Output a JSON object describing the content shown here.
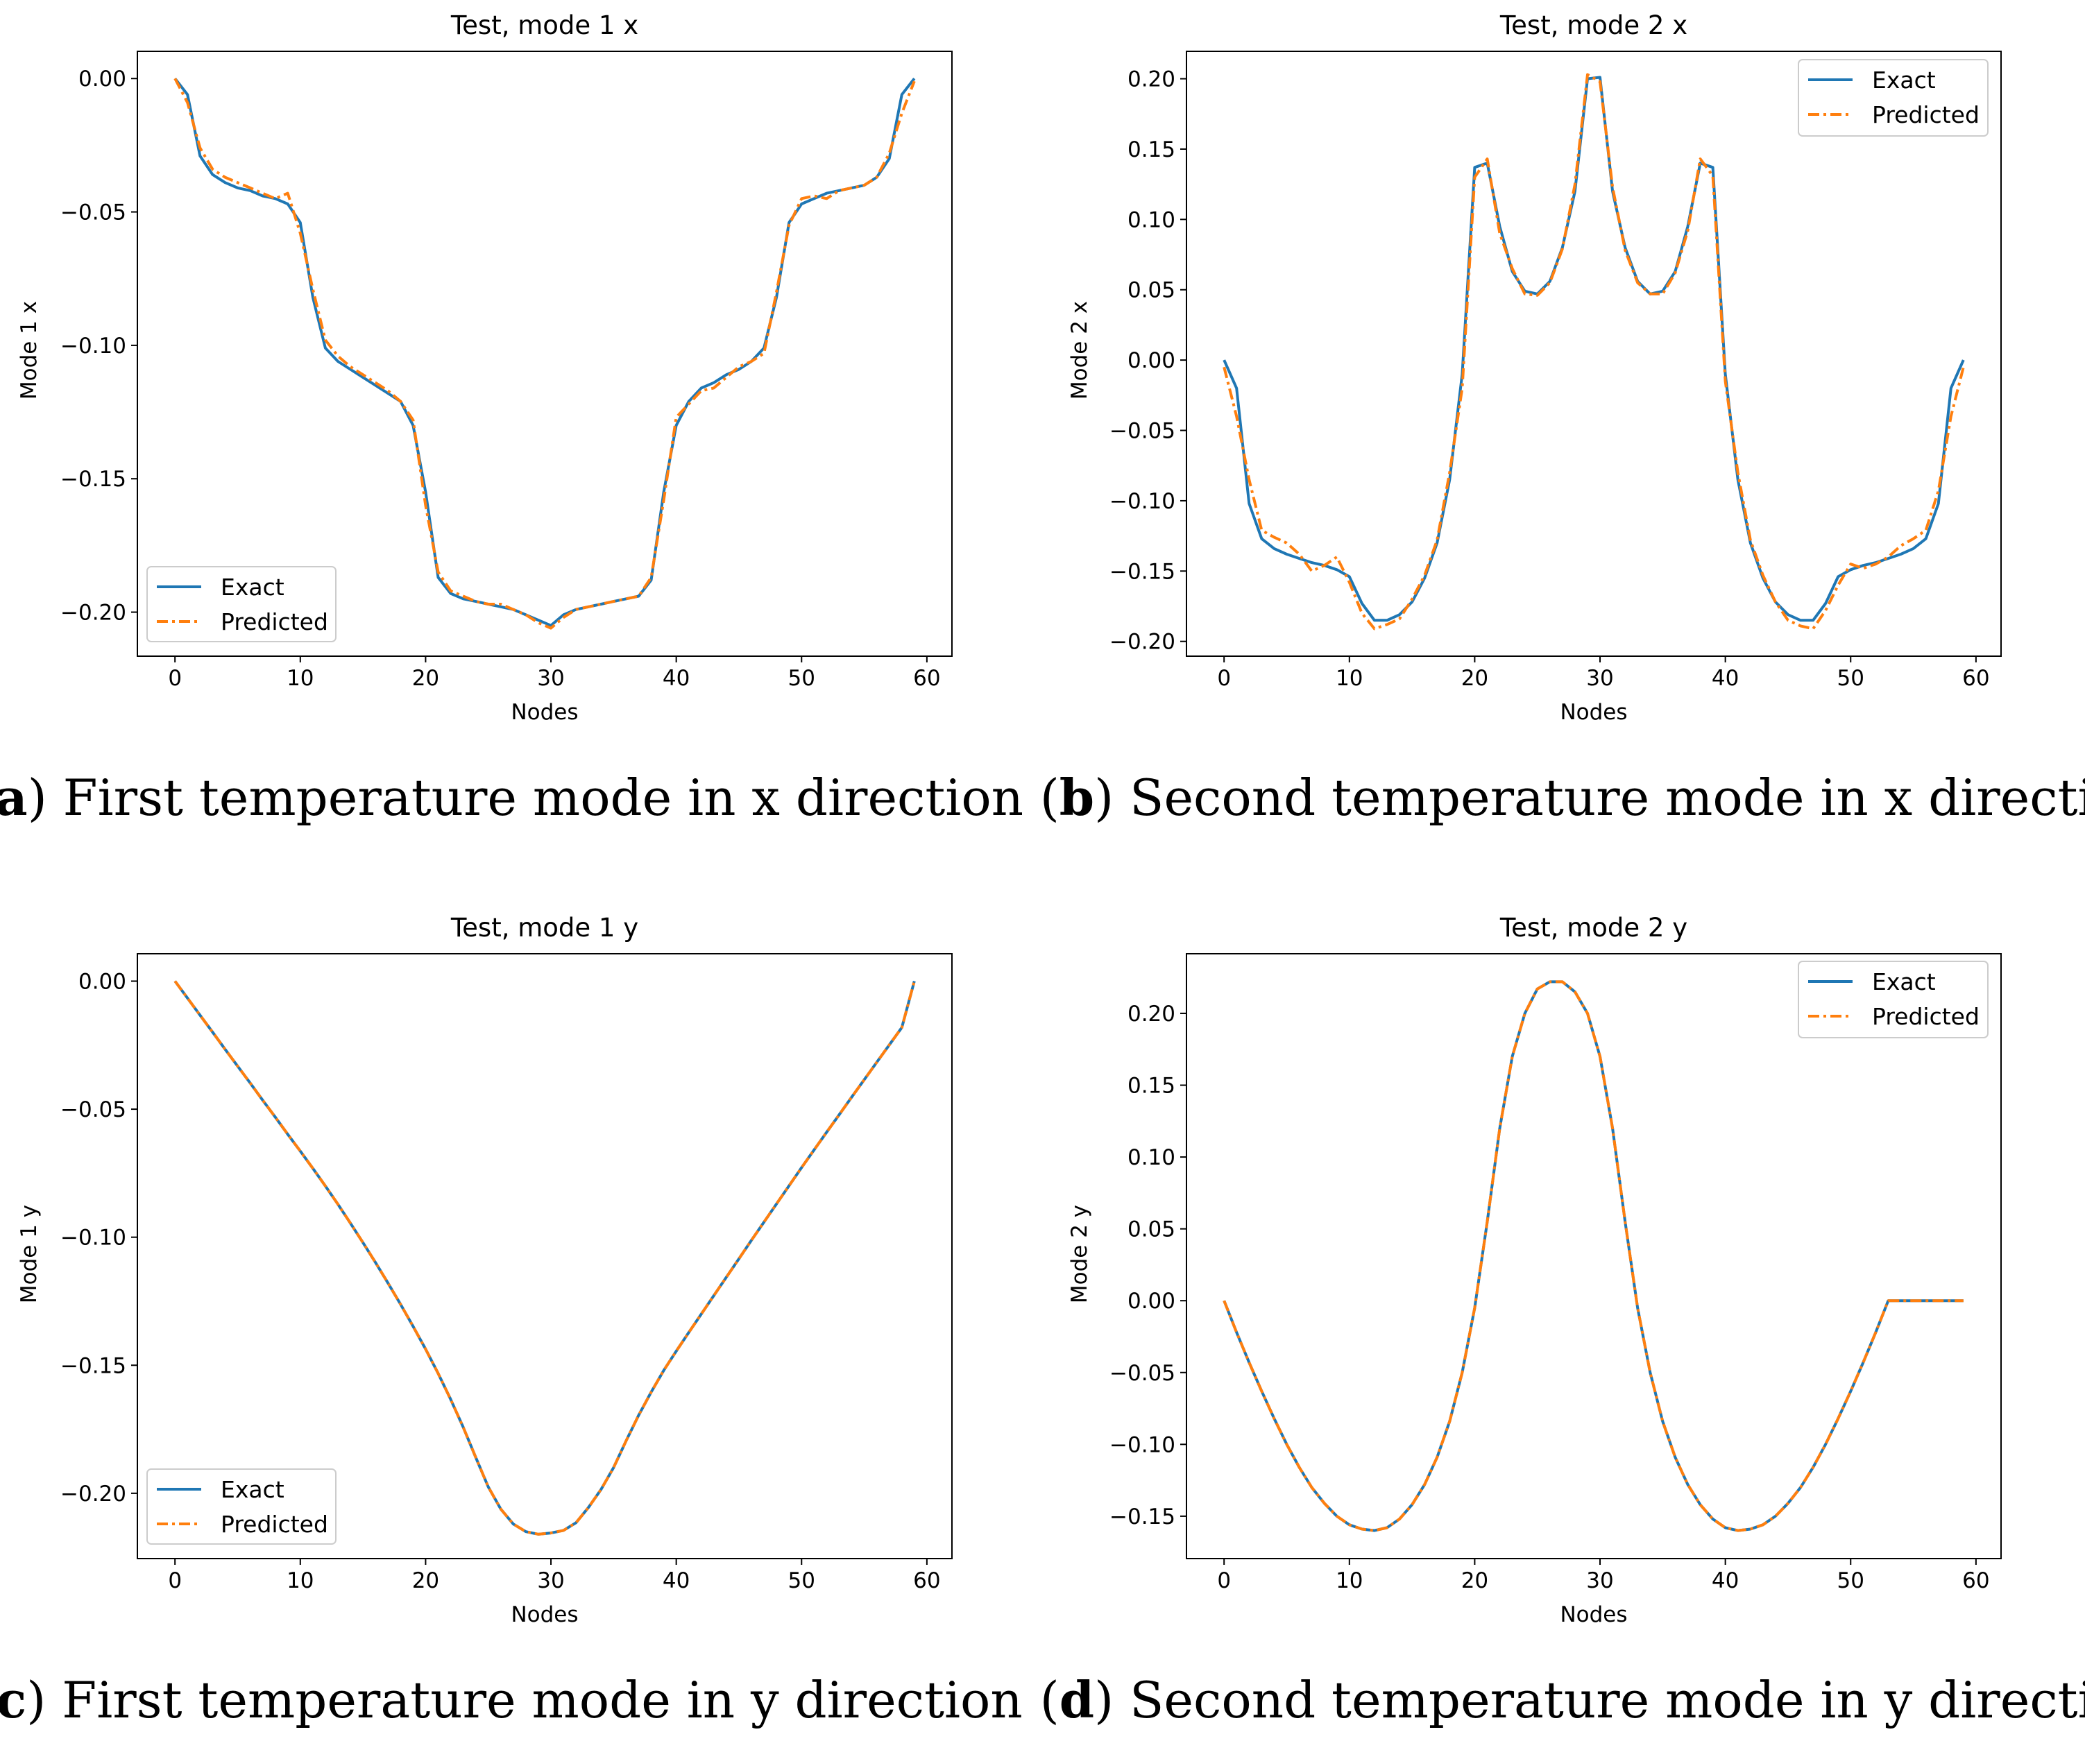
{
  "colors": {
    "exact": "#1f77b4",
    "predicted": "#ff7f0e",
    "axis": "#000000",
    "background": "#ffffff"
  },
  "chart_data": [
    {
      "type": "line",
      "title": "Test, mode 1 x",
      "xlabel": "Nodes",
      "ylabel": "Mode 1 x",
      "caption_letter": "a",
      "caption_text": "First temperature mode in x direction",
      "xlim": [
        -3,
        62
      ],
      "ylim": [
        -0.2165,
        0.0102
      ],
      "xticks": [
        0,
        10,
        20,
        30,
        40,
        50,
        60
      ],
      "xtick_labels": [
        "0",
        "10",
        "20",
        "30",
        "40",
        "50",
        "60"
      ],
      "yticks": [
        0.0,
        -0.05,
        -0.1,
        -0.15,
        -0.2
      ],
      "ytick_labels": [
        "0.00",
        "−0.05",
        "−0.10",
        "−0.15",
        "−0.20"
      ],
      "legend_position": "lower-left",
      "x": [
        0,
        1,
        2,
        3,
        4,
        5,
        6,
        7,
        8,
        9,
        10,
        11,
        12,
        13,
        14,
        15,
        16,
        17,
        18,
        19,
        20,
        21,
        22,
        23,
        24,
        25,
        26,
        27,
        28,
        29,
        30,
        31,
        32,
        33,
        34,
        35,
        36,
        37,
        38,
        39,
        40,
        41,
        42,
        43,
        44,
        45,
        46,
        47,
        48,
        49,
        50,
        51,
        52,
        53,
        54,
        55,
        56,
        57,
        58,
        59
      ],
      "series": [
        {
          "name": "Exact",
          "style": "solid",
          "values": [
            0.0,
            -0.006,
            -0.029,
            -0.036,
            -0.039,
            -0.041,
            -0.042,
            -0.044,
            -0.045,
            -0.047,
            -0.054,
            -0.082,
            -0.101,
            -0.106,
            -0.109,
            -0.112,
            -0.115,
            -0.118,
            -0.121,
            -0.13,
            -0.155,
            -0.187,
            -0.193,
            -0.195,
            -0.196,
            -0.197,
            -0.198,
            -0.199,
            -0.201,
            -0.203,
            -0.205,
            -0.201,
            -0.199,
            -0.198,
            -0.197,
            -0.196,
            -0.195,
            -0.194,
            -0.188,
            -0.155,
            -0.13,
            -0.121,
            -0.116,
            -0.114,
            -0.111,
            -0.109,
            -0.106,
            -0.101,
            -0.082,
            -0.054,
            -0.047,
            -0.045,
            -0.043,
            -0.042,
            -0.041,
            -0.04,
            -0.037,
            -0.03,
            -0.006,
            0.0
          ]
        },
        {
          "name": "Predicted",
          "style": "dashdot",
          "values": [
            0.0,
            -0.009,
            -0.026,
            -0.034,
            -0.037,
            -0.039,
            -0.041,
            -0.043,
            -0.045,
            -0.043,
            -0.058,
            -0.079,
            -0.098,
            -0.104,
            -0.108,
            -0.111,
            -0.114,
            -0.117,
            -0.121,
            -0.128,
            -0.16,
            -0.185,
            -0.192,
            -0.194,
            -0.196,
            -0.197,
            -0.197,
            -0.199,
            -0.201,
            -0.204,
            -0.206,
            -0.202,
            -0.199,
            -0.198,
            -0.197,
            -0.196,
            -0.195,
            -0.194,
            -0.187,
            -0.158,
            -0.127,
            -0.122,
            -0.117,
            -0.116,
            -0.112,
            -0.108,
            -0.106,
            -0.103,
            -0.08,
            -0.055,
            -0.045,
            -0.044,
            -0.045,
            -0.042,
            -0.041,
            -0.04,
            -0.037,
            -0.028,
            -0.013,
            -0.001
          ]
        }
      ]
    },
    {
      "type": "line",
      "title": "Test, mode 2 x",
      "xlabel": "Nodes",
      "ylabel": "Mode 2 x",
      "caption_letter": "b",
      "caption_text": "Second temperature mode in x direction",
      "xlim": [
        -3,
        62
      ],
      "ylim": [
        -0.2105,
        0.2195
      ],
      "xticks": [
        0,
        10,
        20,
        30,
        40,
        50,
        60
      ],
      "xtick_labels": [
        "0",
        "10",
        "20",
        "30",
        "40",
        "50",
        "60"
      ],
      "yticks": [
        0.2,
        0.15,
        0.1,
        0.05,
        0.0,
        -0.05,
        -0.1,
        -0.15,
        -0.2
      ],
      "ytick_labels": [
        "0.20",
        "0.15",
        "0.10",
        "0.05",
        "0.00",
        "−0.05",
        "−0.10",
        "−0.15",
        "−0.20"
      ],
      "legend_position": "upper-right",
      "x": [
        0,
        1,
        2,
        3,
        4,
        5,
        6,
        7,
        8,
        9,
        10,
        11,
        12,
        13,
        14,
        15,
        16,
        17,
        18,
        19,
        20,
        21,
        22,
        23,
        24,
        25,
        26,
        27,
        28,
        29,
        30,
        31,
        32,
        33,
        34,
        35,
        36,
        37,
        38,
        39,
        40,
        41,
        42,
        43,
        44,
        45,
        46,
        47,
        48,
        49,
        50,
        51,
        52,
        53,
        54,
        55,
        56,
        57,
        58,
        59
      ],
      "series": [
        {
          "name": "Exact",
          "style": "solid",
          "values": [
            0.0,
            -0.02,
            -0.102,
            -0.127,
            -0.134,
            -0.138,
            -0.141,
            -0.144,
            -0.146,
            -0.149,
            -0.154,
            -0.173,
            -0.185,
            -0.185,
            -0.181,
            -0.172,
            -0.155,
            -0.13,
            -0.085,
            -0.01,
            0.137,
            0.14,
            0.095,
            0.063,
            0.049,
            0.047,
            0.056,
            0.08,
            0.12,
            0.2,
            0.201,
            0.12,
            0.08,
            0.056,
            0.047,
            0.049,
            0.063,
            0.095,
            0.14,
            0.137,
            -0.01,
            -0.085,
            -0.13,
            -0.155,
            -0.172,
            -0.181,
            -0.185,
            -0.185,
            -0.173,
            -0.154,
            -0.149,
            -0.146,
            -0.144,
            -0.141,
            -0.138,
            -0.134,
            -0.127,
            -0.102,
            -0.02,
            0.0
          ]
        },
        {
          "name": "Predicted",
          "style": "dashdot",
          "values": [
            -0.005,
            -0.04,
            -0.085,
            -0.121,
            -0.126,
            -0.13,
            -0.138,
            -0.15,
            -0.146,
            -0.14,
            -0.158,
            -0.18,
            -0.191,
            -0.188,
            -0.184,
            -0.17,
            -0.153,
            -0.128,
            -0.08,
            -0.02,
            0.13,
            0.143,
            0.09,
            0.065,
            0.047,
            0.046,
            0.055,
            0.079,
            0.125,
            0.203,
            0.198,
            0.123,
            0.078,
            0.055,
            0.047,
            0.047,
            0.062,
            0.092,
            0.143,
            0.131,
            -0.015,
            -0.08,
            -0.128,
            -0.153,
            -0.172,
            -0.185,
            -0.189,
            -0.191,
            -0.178,
            -0.16,
            -0.145,
            -0.148,
            -0.145,
            -0.14,
            -0.132,
            -0.127,
            -0.121,
            -0.093,
            -0.04,
            -0.005
          ]
        }
      ]
    },
    {
      "type": "line",
      "title": "Test, mode 1 y",
      "xlabel": "Nodes",
      "ylabel": "Mode 1 y",
      "caption_letter": "c",
      "caption_text": "First temperature mode in y direction",
      "xlim": [
        -3,
        62
      ],
      "ylim": [
        -0.2255,
        0.0107
      ],
      "xticks": [
        0,
        10,
        20,
        30,
        40,
        50,
        60
      ],
      "xtick_labels": [
        "0",
        "10",
        "20",
        "30",
        "40",
        "50",
        "60"
      ],
      "yticks": [
        0.0,
        -0.05,
        -0.1,
        -0.15,
        -0.2
      ],
      "ytick_labels": [
        "0.00",
        "−0.05",
        "−0.10",
        "−0.15",
        "−0.20"
      ],
      "legend_position": "lower-left",
      "x": [
        0,
        1,
        2,
        3,
        4,
        5,
        6,
        7,
        8,
        9,
        10,
        11,
        12,
        13,
        14,
        15,
        16,
        17,
        18,
        19,
        20,
        21,
        22,
        23,
        24,
        25,
        26,
        27,
        28,
        29,
        30,
        31,
        32,
        33,
        34,
        35,
        36,
        37,
        38,
        39,
        40,
        41,
        42,
        43,
        44,
        45,
        46,
        47,
        48,
        49,
        50,
        51,
        52,
        53,
        54,
        55,
        56,
        57,
        58,
        59
      ],
      "series": [
        {
          "name": "Exact",
          "style": "solid",
          "values": [
            0.0,
            -0.0066,
            -0.0133,
            -0.0199,
            -0.0266,
            -0.0332,
            -0.0398,
            -0.0465,
            -0.0531,
            -0.0598,
            -0.0664,
            -0.0731,
            -0.08,
            -0.0871,
            -0.0945,
            -0.1021,
            -0.1099,
            -0.1179,
            -0.1262,
            -0.1348,
            -0.1437,
            -0.1532,
            -0.1633,
            -0.1742,
            -0.186,
            -0.1975,
            -0.2062,
            -0.212,
            -0.215,
            -0.216,
            -0.2155,
            -0.2145,
            -0.2115,
            -0.2055,
            -0.1985,
            -0.19,
            -0.1795,
            -0.1695,
            -0.1605,
            -0.152,
            -0.1445,
            -0.1372,
            -0.13,
            -0.1228,
            -0.1156,
            -0.1084,
            -0.1012,
            -0.0941,
            -0.087,
            -0.0799,
            -0.0728,
            -0.0659,
            -0.059,
            -0.0522,
            -0.0453,
            -0.0385,
            -0.0317,
            -0.0249,
            -0.0181,
            0.0
          ]
        },
        {
          "name": "Predicted",
          "style": "dashdot",
          "values": [
            0.0,
            -0.0066,
            -0.0133,
            -0.0199,
            -0.0266,
            -0.0332,
            -0.0398,
            -0.0465,
            -0.0531,
            -0.0598,
            -0.0664,
            -0.0731,
            -0.08,
            -0.0871,
            -0.0945,
            -0.1021,
            -0.1099,
            -0.1179,
            -0.1262,
            -0.1348,
            -0.1437,
            -0.1532,
            -0.1633,
            -0.1742,
            -0.186,
            -0.1975,
            -0.2062,
            -0.212,
            -0.215,
            -0.216,
            -0.2155,
            -0.2145,
            -0.2115,
            -0.2055,
            -0.1985,
            -0.19,
            -0.1795,
            -0.1695,
            -0.1605,
            -0.152,
            -0.1445,
            -0.1372,
            -0.13,
            -0.1228,
            -0.1156,
            -0.1084,
            -0.1012,
            -0.0941,
            -0.087,
            -0.0799,
            -0.0728,
            -0.0659,
            -0.059,
            -0.0522,
            -0.0453,
            -0.0385,
            -0.0317,
            -0.0249,
            -0.0181,
            0.0
          ]
        }
      ]
    },
    {
      "type": "line",
      "title": "Test, mode 2 y",
      "xlabel": "Nodes",
      "ylabel": "Mode 2 y",
      "caption_letter": "d",
      "caption_text": "Second temperature mode in y direction",
      "xlim": [
        -3,
        62
      ],
      "ylim": [
        -0.1795,
        0.2415
      ],
      "xticks": [
        0,
        10,
        20,
        30,
        40,
        50,
        60
      ],
      "xtick_labels": [
        "0",
        "10",
        "20",
        "30",
        "40",
        "50",
        "60"
      ],
      "yticks": [
        0.2,
        0.15,
        0.1,
        0.05,
        0.0,
        -0.05,
        -0.1,
        -0.15
      ],
      "ytick_labels": [
        "0.20",
        "0.15",
        "0.10",
        "0.05",
        "0.00",
        "−0.05",
        "−0.10",
        "−0.15"
      ],
      "legend_position": "upper-right",
      "x": [
        0,
        1,
        2,
        3,
        4,
        5,
        6,
        7,
        8,
        9,
        10,
        11,
        12,
        13,
        14,
        15,
        16,
        17,
        18,
        19,
        20,
        21,
        22,
        23,
        24,
        25,
        26,
        27,
        28,
        29,
        30,
        31,
        32,
        33,
        34,
        35,
        36,
        37,
        38,
        39,
        40,
        41,
        42,
        43,
        44,
        45,
        46,
        47,
        48,
        49,
        50,
        51,
        52,
        53,
        54,
        55,
        56,
        57,
        58,
        59
      ],
      "series": [
        {
          "name": "Exact",
          "style": "solid",
          "values": [
            0.0,
            -0.022,
            -0.043,
            -0.063,
            -0.082,
            -0.1,
            -0.116,
            -0.13,
            -0.141,
            -0.15,
            -0.156,
            -0.159,
            -0.16,
            -0.158,
            -0.152,
            -0.142,
            -0.128,
            -0.109,
            -0.084,
            -0.05,
            -0.005,
            0.055,
            0.12,
            0.17,
            0.2,
            0.217,
            0.222,
            0.222,
            0.215,
            0.2,
            0.17,
            0.12,
            0.055,
            -0.005,
            -0.05,
            -0.084,
            -0.109,
            -0.128,
            -0.142,
            -0.152,
            -0.158,
            -0.16,
            -0.159,
            -0.156,
            -0.15,
            -0.141,
            -0.13,
            -0.116,
            -0.1,
            -0.082,
            -0.063,
            -0.043,
            -0.022,
            0.0,
            0.0,
            0.0,
            0.0,
            0.0,
            0.0,
            0.0
          ]
        },
        {
          "name": "Predicted",
          "style": "dashdot",
          "values": [
            0.0,
            -0.022,
            -0.043,
            -0.063,
            -0.082,
            -0.1,
            -0.116,
            -0.13,
            -0.141,
            -0.15,
            -0.156,
            -0.159,
            -0.16,
            -0.158,
            -0.152,
            -0.142,
            -0.128,
            -0.109,
            -0.084,
            -0.05,
            -0.005,
            0.055,
            0.12,
            0.17,
            0.2,
            0.217,
            0.222,
            0.222,
            0.215,
            0.2,
            0.17,
            0.12,
            0.055,
            -0.005,
            -0.05,
            -0.084,
            -0.109,
            -0.128,
            -0.142,
            -0.152,
            -0.158,
            -0.16,
            -0.159,
            -0.156,
            -0.15,
            -0.141,
            -0.13,
            -0.116,
            -0.1,
            -0.082,
            -0.063,
            -0.043,
            -0.022,
            0.0,
            0.0,
            0.0,
            0.0,
            0.0,
            0.0,
            0.0
          ]
        }
      ]
    }
  ]
}
